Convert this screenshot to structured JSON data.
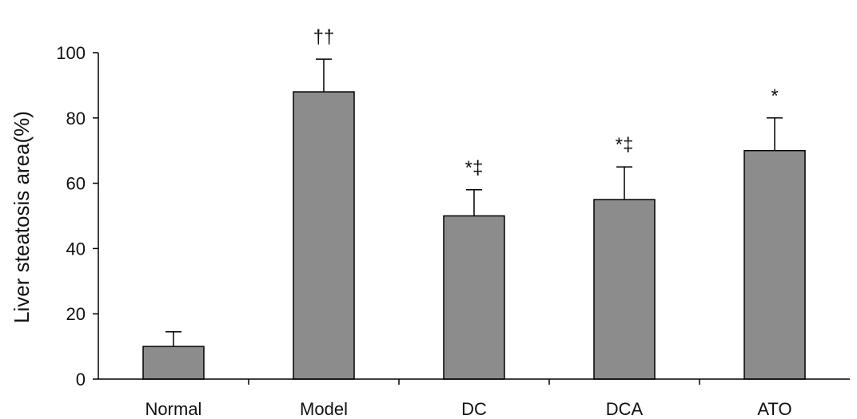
{
  "chart_data": {
    "type": "bar",
    "title": "",
    "xlabel": "",
    "ylabel": "Liver steatosis area(%)",
    "ylim": [
      0,
      100
    ],
    "yticks": [
      "0",
      "20",
      "40",
      "60",
      "80",
      "100"
    ],
    "categories": [
      "Normal",
      "Model",
      "DC",
      "DCA",
      "ATO"
    ],
    "values": [
      10,
      88,
      50,
      55,
      70
    ],
    "errors": [
      4.5,
      10,
      8,
      10,
      10
    ],
    "annotations": [
      "",
      "††",
      "*‡",
      "*‡",
      "*"
    ],
    "bar_color": "#8c8c8c",
    "grid": false,
    "legend": "none"
  }
}
